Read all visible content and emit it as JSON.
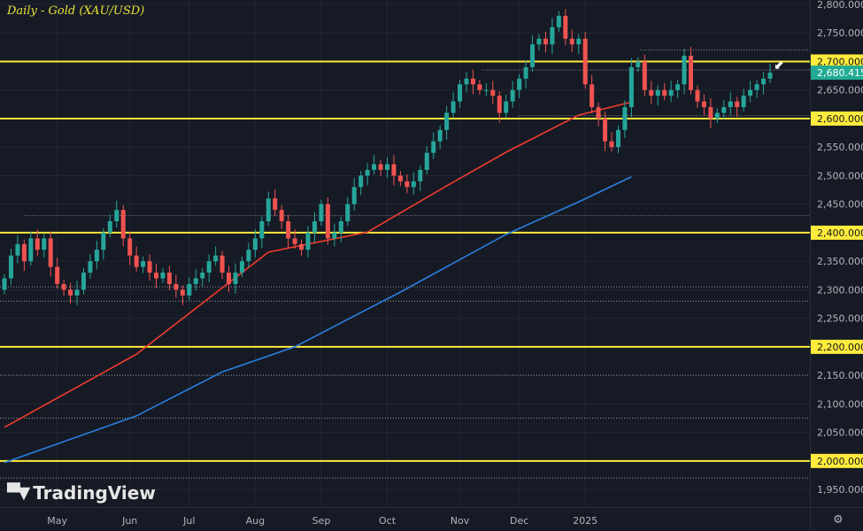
{
  "title": "Daily - Gold (XAU/USD)",
  "logo_text": "TradingView",
  "settings_icon": "gear-icon",
  "colors": {
    "bg": "#161a25",
    "grid": "#222633",
    "up": "#26a69a",
    "down": "#ef5350",
    "yellow": "#ffeb3b",
    "ma_red": "#f23c2e",
    "ma_blue": "#2a7fe0",
    "text": "#b2b5be",
    "last": "#22ab94"
  },
  "chart_data": {
    "type": "candlestick",
    "title": "Daily - Gold (XAU/USD)",
    "ylim": [
      1930,
      2810
    ],
    "y_ticks": [
      "2,800.000",
      "2,750.000",
      "2,700.000",
      "2,650.000",
      "2,600.000",
      "2,550.000",
      "2,500.000",
      "2,450.000",
      "2,400.000",
      "2,350.000",
      "2,300.000",
      "2,250.000",
      "2,200.000",
      "2,150.000",
      "2,100.000",
      "2,050.000",
      "2,000.000",
      "1,950.000"
    ],
    "y_tick_values": [
      2800,
      2750,
      2700,
      2650,
      2600,
      2550,
      2500,
      2450,
      2400,
      2350,
      2300,
      2250,
      2200,
      2150,
      2100,
      2050,
      2000,
      1950
    ],
    "x_ticks": [
      {
        "label": "May",
        "index": 8
      },
      {
        "label": "Jun",
        "index": 19
      },
      {
        "label": "Jul",
        "index": 28
      },
      {
        "label": "Aug",
        "index": 38
      },
      {
        "label": "Sep",
        "index": 48
      },
      {
        "label": "Oct",
        "index": 58
      },
      {
        "label": "Nov",
        "index": 69
      },
      {
        "label": "Dec",
        "index": 78
      },
      {
        "label": "2025",
        "index": 88
      }
    ],
    "closes": [
      2320,
      2360,
      2380,
      2350,
      2390,
      2370,
      2390,
      2340,
      2310,
      2300,
      2290,
      2300,
      2330,
      2350,
      2370,
      2400,
      2420,
      2440,
      2390,
      2360,
      2340,
      2350,
      2330,
      2320,
      2330,
      2310,
      2300,
      2290,
      2310,
      2320,
      2330,
      2350,
      2360,
      2330,
      2310,
      2330,
      2350,
      2370,
      2390,
      2420,
      2460,
      2440,
      2420,
      2390,
      2380,
      2370,
      2400,
      2420,
      2450,
      2390,
      2400,
      2420,
      2450,
      2480,
      2500,
      2510,
      2520,
      2510,
      2520,
      2500,
      2490,
      2480,
      2490,
      2510,
      2540,
      2560,
      2580,
      2610,
      2630,
      2660,
      2670,
      2660,
      2650,
      2650,
      2640,
      2610,
      2630,
      2650,
      2670,
      2690,
      2730,
      2740,
      2730,
      2760,
      2780,
      2740,
      2730,
      2740,
      2660,
      2620,
      2600,
      2560,
      2550,
      2580,
      2620,
      2690,
      2700,
      2650,
      2640,
      2650,
      2640,
      2650,
      2660,
      2710,
      2650,
      2630,
      2620,
      2600,
      2610,
      2620,
      2630,
      2620,
      2640,
      2650,
      2660,
      2670,
      2680.415
    ],
    "last_price": "2,680.415",
    "horizontal_levels": [
      2700,
      2600,
      2400,
      2200,
      2000
    ],
    "highlighted_labels": [
      "2,700.000",
      "2,600.000",
      "2,400.000",
      "2,200.000",
      "2,000.000"
    ],
    "dotted_levels": [
      {
        "price": 2720,
        "from": 0.79
      },
      {
        "price": 2685,
        "from": 0.595
      },
      {
        "price": 2605,
        "from": 0.64
      },
      {
        "price": 2430,
        "from": 0.03
      },
      {
        "price": 2305,
        "from": 0
      },
      {
        "price": 2280,
        "from": 0
      },
      {
        "price": 2150,
        "from": 0
      },
      {
        "price": 2075,
        "from": 0
      },
      {
        "price": 1970,
        "from": 0
      }
    ],
    "series": [
      {
        "name": "MA red",
        "points": [
          [
            0,
            2059
          ],
          [
            20,
            2187
          ],
          [
            40,
            2366
          ],
          [
            55,
            2401
          ],
          [
            67,
            2482
          ],
          [
            76,
            2541
          ],
          [
            87,
            2606
          ],
          [
            95,
            2629
          ]
        ]
      },
      {
        "name": "MA blue",
        "points": [
          [
            0,
            1997
          ],
          [
            20,
            2079
          ],
          [
            33,
            2156
          ],
          [
            44,
            2200
          ],
          [
            60,
            2296
          ],
          [
            76,
            2397
          ],
          [
            87,
            2454
          ],
          [
            95,
            2498
          ]
        ]
      }
    ]
  }
}
